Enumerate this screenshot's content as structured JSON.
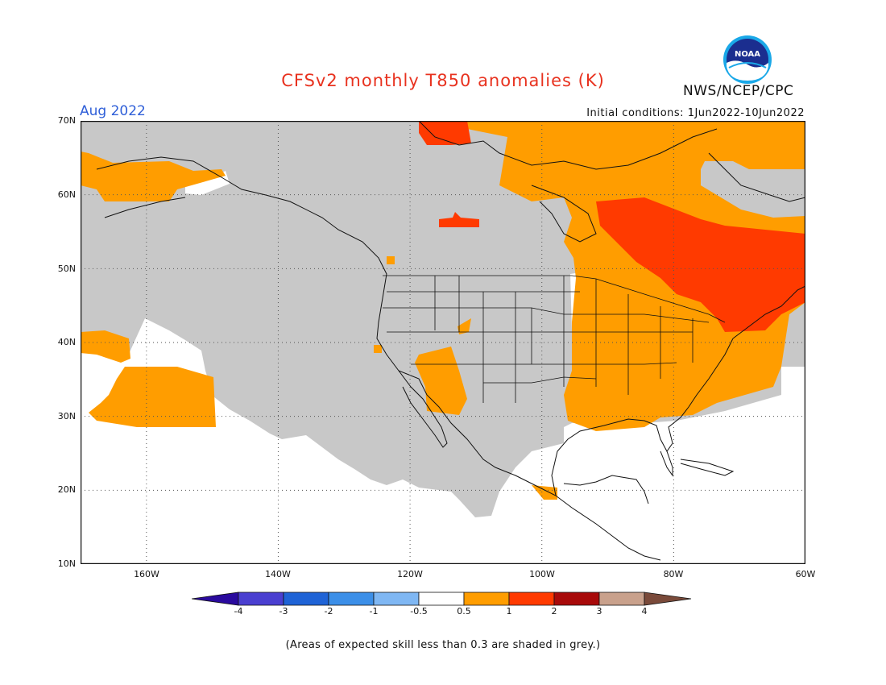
{
  "title": "CFSv2 monthly T850 anomalies (K)",
  "agency": "NWS/NCEP/CPC",
  "valid_month": "Aug 2022",
  "initial_conditions": "Initial conditions: 1Jun2022-10Jun2022",
  "footnote": "(Areas of expected skill less than 0.3 are shaded in grey.)",
  "logo_text": "NOAA",
  "map": {
    "lon_range": [
      -170,
      -60
    ],
    "lat_range": [
      10,
      70
    ],
    "lat_labels": [
      "70N",
      "60N",
      "50N",
      "40N",
      "30N",
      "20N",
      "10N"
    ],
    "lon_labels": [
      "160W",
      "140W",
      "120W",
      "100W",
      "80W",
      "60W"
    ],
    "regions": [
      {
        "name": "low-skill",
        "meaning": "skill less than 0.3",
        "color": "#c8c8c8"
      },
      {
        "name": "anomaly-0.5-1",
        "meaning": "0.5 to 1 K",
        "color": "#ff9d00"
      },
      {
        "name": "anomaly-1-2",
        "meaning": "1 to 2 K",
        "color": "#ff3a00"
      }
    ]
  },
  "colorbar": {
    "labels": [
      "-4",
      "-3",
      "-2",
      "-1",
      "-0.5",
      "0.5",
      "1",
      "2",
      "3",
      "4"
    ],
    "colors": [
      "#2a0a9e",
      "#4a3fd0",
      "#1f63d6",
      "#3c8fe8",
      "#7fb7f3",
      "#ffffff",
      "#ff9d00",
      "#ff3a00",
      "#a80a0a",
      "#c9a18c",
      "#7a4a3a"
    ]
  },
  "colors": {
    "title": "#e8321f",
    "month": "#2f5fd8"
  }
}
